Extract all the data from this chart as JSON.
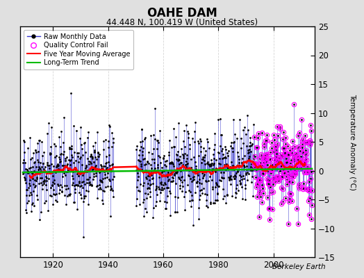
{
  "title": "OAHE DAM",
  "subtitle": "44.448 N, 100.419 W (United States)",
  "ylabel_right": "Temperature Anomaly (°C)",
  "credit": "Berkeley Earth",
  "xlim": [
    1908,
    2015
  ],
  "ylim": [
    -15,
    25
  ],
  "yticks_right": [
    -15,
    -10,
    -5,
    0,
    5,
    10,
    15,
    20,
    25
  ],
  "xticks": [
    1920,
    1940,
    1960,
    1980,
    2000
  ],
  "bg_color": "#e0e0e0",
  "plot_bg_color": "#ffffff",
  "raw_line_color": "#3333cc",
  "raw_dot_color": "#000000",
  "qc_color": "#ff00ff",
  "ma_color": "#ff0000",
  "trend_color": "#00bb00",
  "gap_start": 1942,
  "gap_end": 1950,
  "qc_fail_start": 1993,
  "seed": 42,
  "start_year": 1909,
  "end_year": 2013,
  "trend_slope": 0.006,
  "trend_intercept": 0.0
}
